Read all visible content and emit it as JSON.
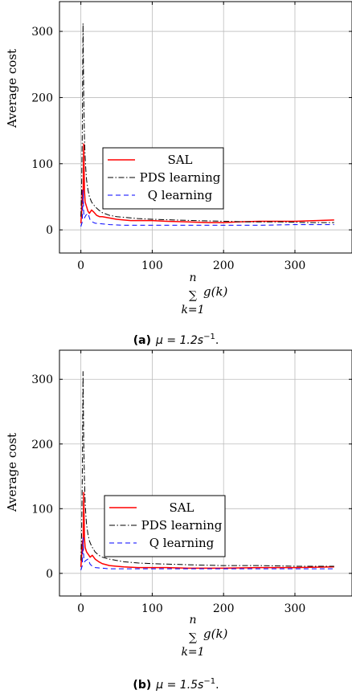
{
  "chart_data": [
    {
      "type": "line",
      "caption": {
        "letter": "(a)",
        "text": "μ = 1.2s",
        "sup": "−1",
        "end": "."
      },
      "ylabel": "Average cost",
      "xlabel": {
        "sum": "∑",
        "upper": "n",
        "lower": "k=1",
        "func": "g(k)"
      },
      "xlim": [
        -30,
        380
      ],
      "ylim": [
        -35,
        345
      ],
      "xticks": [
        0,
        100,
        200,
        300
      ],
      "yticks": [
        0,
        100,
        200,
        300
      ],
      "grid": true,
      "legend_position": "center",
      "series": [
        {
          "name": "SAL",
          "color": "#ff0000",
          "dash": "solid",
          "points": [
            [
              0,
              10
            ],
            [
              1,
              25
            ],
            [
              2,
              60
            ],
            [
              3,
              40
            ],
            [
              4,
              130
            ],
            [
              5,
              60
            ],
            [
              6,
              42
            ],
            [
              8,
              35
            ],
            [
              10,
              28
            ],
            [
              12,
              25
            ],
            [
              15,
              30
            ],
            [
              18,
              27
            ],
            [
              22,
              22
            ],
            [
              26,
              20
            ],
            [
              30,
              20
            ],
            [
              40,
              18
            ],
            [
              50,
              16
            ],
            [
              60,
              15
            ],
            [
              70,
              14
            ],
            [
              80,
              14
            ],
            [
              100,
              14
            ],
            [
              120,
              13
            ],
            [
              150,
              12
            ],
            [
              180,
              11
            ],
            [
              200,
              11
            ],
            [
              220,
              12
            ],
            [
              250,
              13
            ],
            [
              280,
              13
            ],
            [
              300,
              13
            ],
            [
              330,
              14
            ],
            [
              355,
              15
            ]
          ]
        },
        {
          "name": "PDS learning",
          "color": "#000000",
          "dash": "dashdot",
          "points": [
            [
              0,
              20
            ],
            [
              1,
              60
            ],
            [
              2,
              150
            ],
            [
              3,
              312
            ],
            [
              4,
              200
            ],
            [
              5,
              140
            ],
            [
              6,
              110
            ],
            [
              7,
              90
            ],
            [
              8,
              75
            ],
            [
              10,
              60
            ],
            [
              12,
              50
            ],
            [
              15,
              42
            ],
            [
              20,
              35
            ],
            [
              25,
              30
            ],
            [
              30,
              26
            ],
            [
              40,
              22
            ],
            [
              50,
              20
            ],
            [
              60,
              19
            ],
            [
              80,
              17
            ],
            [
              100,
              16
            ],
            [
              130,
              15
            ],
            [
              160,
              14
            ],
            [
              200,
              13
            ],
            [
              240,
              12
            ],
            [
              280,
              12
            ],
            [
              320,
              11
            ],
            [
              355,
              11
            ]
          ]
        },
        {
          "name": "Q learning",
          "color": "#0000ff",
          "dash": "dashed",
          "points": [
            [
              0,
              5
            ],
            [
              2,
              12
            ],
            [
              3,
              60
            ],
            [
              4,
              25
            ],
            [
              5,
              18
            ],
            [
              7,
              22
            ],
            [
              10,
              25
            ],
            [
              13,
              15
            ],
            [
              16,
              12
            ],
            [
              20,
              10
            ],
            [
              30,
              9
            ],
            [
              40,
              8
            ],
            [
              60,
              7
            ],
            [
              100,
              7
            ],
            [
              150,
              7
            ],
            [
              200,
              7
            ],
            [
              250,
              7
            ],
            [
              300,
              8
            ],
            [
              355,
              8
            ]
          ]
        }
      ]
    },
    {
      "type": "line",
      "caption": {
        "letter": "(b)",
        "text": "μ = 1.5s",
        "sup": "−1",
        "end": "."
      },
      "ylabel": "Average cost",
      "xlabel": {
        "sum": "∑",
        "upper": "n",
        "lower": "k=1",
        "func": "g(k)"
      },
      "xlim": [
        -30,
        380
      ],
      "ylim": [
        -35,
        345
      ],
      "xticks": [
        0,
        100,
        200,
        300
      ],
      "yticks": [
        0,
        100,
        200,
        300
      ],
      "grid": true,
      "legend_position": "center",
      "series": [
        {
          "name": "SAL",
          "color": "#ff0000",
          "dash": "solid",
          "points": [
            [
              0,
              10
            ],
            [
              1,
              25
            ],
            [
              2,
              50
            ],
            [
              3,
              35
            ],
            [
              4,
              125
            ],
            [
              5,
              55
            ],
            [
              6,
              40
            ],
            [
              8,
              33
            ],
            [
              10,
              30
            ],
            [
              13,
              25
            ],
            [
              16,
              28
            ],
            [
              20,
              22
            ],
            [
              25,
              18
            ],
            [
              30,
              15
            ],
            [
              40,
              12
            ],
            [
              50,
              11
            ],
            [
              60,
              10
            ],
            [
              80,
              9
            ],
            [
              100,
              9
            ],
            [
              120,
              9
            ],
            [
              150,
              8
            ],
            [
              200,
              8
            ],
            [
              250,
              9
            ],
            [
              300,
              9
            ],
            [
              355,
              10
            ]
          ]
        },
        {
          "name": "PDS learning",
          "color": "#000000",
          "dash": "dashdot",
          "points": [
            [
              0,
              20
            ],
            [
              1,
              60
            ],
            [
              2,
              150
            ],
            [
              3,
              312
            ],
            [
              4,
              200
            ],
            [
              5,
              145
            ],
            [
              6,
              110
            ],
            [
              7,
              90
            ],
            [
              8,
              75
            ],
            [
              10,
              60
            ],
            [
              12,
              50
            ],
            [
              15,
              42
            ],
            [
              20,
              33
            ],
            [
              25,
              28
            ],
            [
              30,
              25
            ],
            [
              40,
              22
            ],
            [
              50,
              20
            ],
            [
              60,
              18
            ],
            [
              80,
              16
            ],
            [
              100,
              15
            ],
            [
              130,
              14
            ],
            [
              160,
              13
            ],
            [
              200,
              12
            ],
            [
              250,
              12
            ],
            [
              300,
              11
            ],
            [
              355,
              11
            ]
          ]
        },
        {
          "name": "Q learning",
          "color": "#0000ff",
          "dash": "dashed",
          "points": [
            [
              0,
              5
            ],
            [
              2,
              12
            ],
            [
              3,
              55
            ],
            [
              4,
              25
            ],
            [
              5,
              18
            ],
            [
              7,
              20
            ],
            [
              10,
              22
            ],
            [
              13,
              14
            ],
            [
              16,
              11
            ],
            [
              20,
              9
            ],
            [
              30,
              8
            ],
            [
              40,
              7
            ],
            [
              60,
              7
            ],
            [
              100,
              7
            ],
            [
              150,
              7
            ],
            [
              200,
              7
            ],
            [
              250,
              7
            ],
            [
              300,
              7
            ],
            [
              355,
              7
            ]
          ]
        }
      ]
    }
  ]
}
